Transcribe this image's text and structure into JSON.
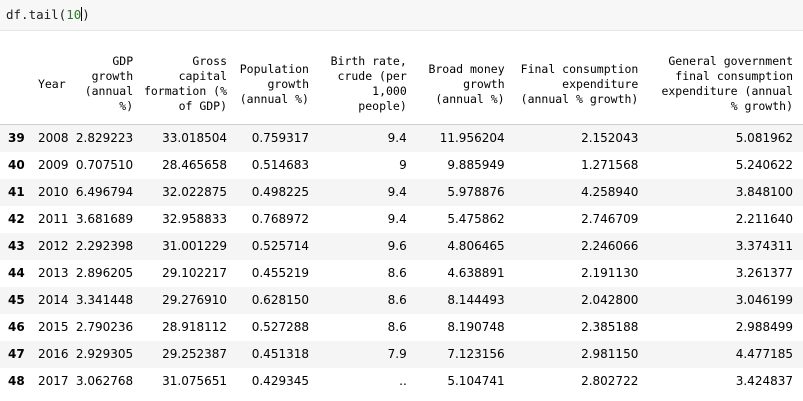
{
  "cell": {
    "code_prefix": "df.tail(",
    "code_arg": "10",
    "code_suffix": ")"
  },
  "table": {
    "columns": [
      "",
      "Year",
      "GDP growth (annual %)",
      "Gross capital formation (% of GDP)",
      "Population growth (annual %)",
      "Birth rate, crude (per 1,000 people)",
      "Broad money growth (annual %)",
      "Final consumption expenditure (annual % growth)",
      "General government final consumption expenditure (annual % growth)"
    ],
    "rows": [
      [
        "39",
        "2008",
        "2.829223",
        "33.018504",
        "0.759317",
        "9.4",
        "11.956204",
        "2.152043",
        "5.081962"
      ],
      [
        "40",
        "2009",
        "0.707510",
        "28.465658",
        "0.514683",
        "9",
        "9.885949",
        "1.271568",
        "5.240622"
      ],
      [
        "41",
        "2010",
        "6.496794",
        "32.022875",
        "0.498225",
        "9.4",
        "5.978876",
        "4.258940",
        "3.848100"
      ],
      [
        "42",
        "2011",
        "3.681689",
        "32.958833",
        "0.768972",
        "9.4",
        "5.475862",
        "2.746709",
        "2.211640"
      ],
      [
        "43",
        "2012",
        "2.292398",
        "31.001229",
        "0.525714",
        "9.6",
        "4.806465",
        "2.246066",
        "3.374311"
      ],
      [
        "44",
        "2013",
        "2.896205",
        "29.102217",
        "0.455219",
        "8.6",
        "4.638891",
        "2.191130",
        "3.261377"
      ],
      [
        "45",
        "2014",
        "3.341448",
        "29.276910",
        "0.628150",
        "8.6",
        "8.144493",
        "2.042800",
        "3.046199"
      ],
      [
        "46",
        "2015",
        "2.790236",
        "28.918112",
        "0.527288",
        "8.6",
        "8.190748",
        "2.385188",
        "2.988499"
      ],
      [
        "47",
        "2016",
        "2.929305",
        "29.252387",
        "0.451318",
        "7.9",
        "7.123156",
        "2.981150",
        "4.477185"
      ],
      [
        "48",
        "2017",
        "3.062768",
        "31.075651",
        "0.429345",
        "..",
        "5.104741",
        "2.802722",
        "3.424837"
      ]
    ]
  }
}
